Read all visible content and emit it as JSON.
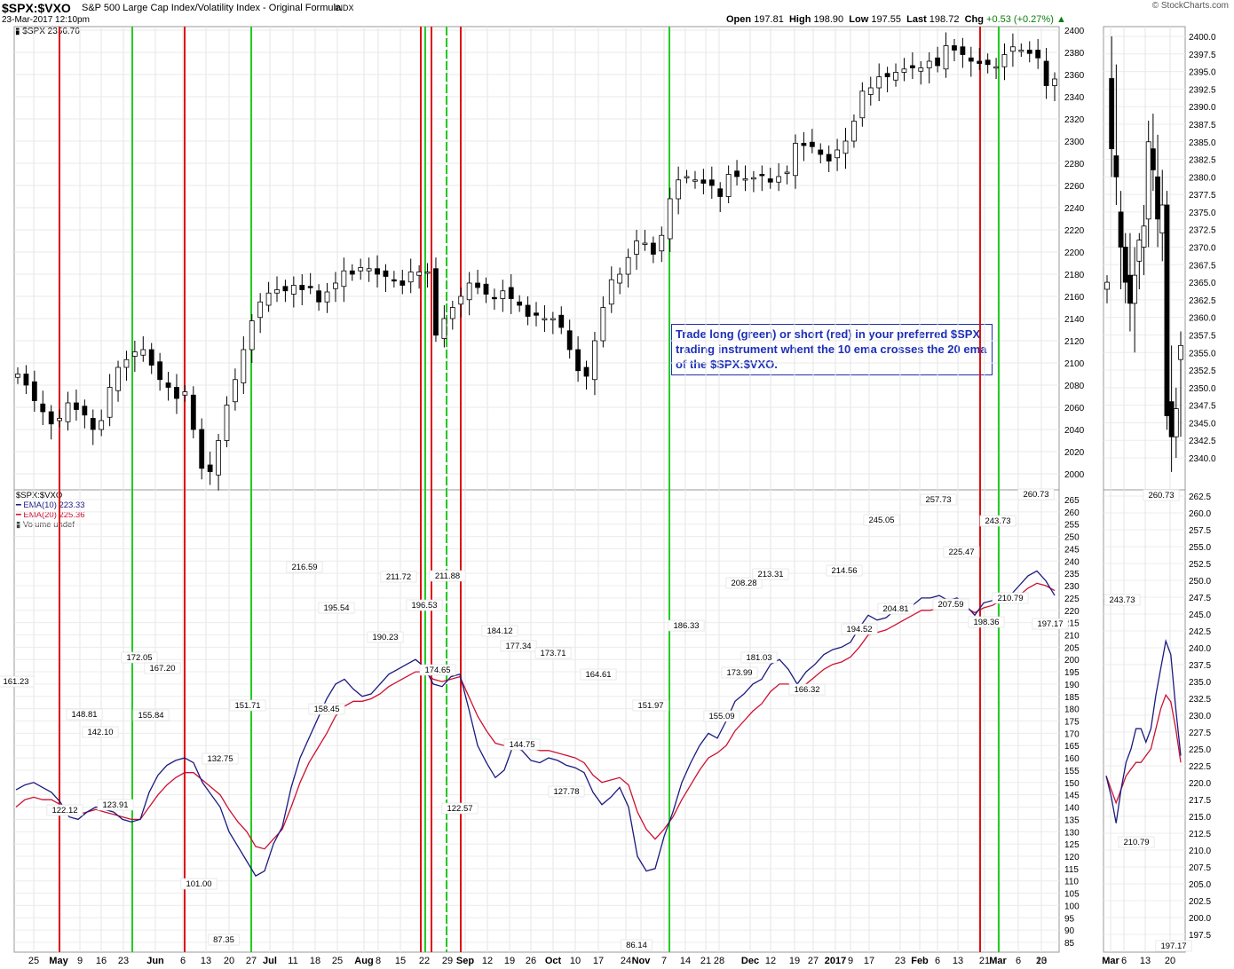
{
  "header": {
    "symbol": "$SPX:$VXO",
    "description": "S&P 500 Large Cap Index/Volatility Index - Original Formula",
    "exchange": "INDX",
    "datetime": "23-Mar-2017 12:10pm",
    "watermark": "© StockCharts.com",
    "open_label": "Open",
    "open": "197.81",
    "high_label": "High",
    "high": "198.90",
    "low_label": "Low",
    "low": "197.55",
    "last_label": "Last",
    "last": "198.72",
    "chg_label": "Chg",
    "chg": "+0.53 (+0.27%)",
    "price_overlay": "$SPX 2356.76"
  },
  "annotation": "Trade long (green) or short (red) in your preferred $SPX trading instrument whent the 10 ema crosses the 20 ema of the $SPX:$VXO.",
  "lower_legend": {
    "title": "$SPX:$VXO",
    "ema10": "EMA(10) 223.33",
    "ema20": "EMA(20) 225.36",
    "volume": "Volume undef"
  },
  "colors": {
    "green_line": "#22cc22",
    "red_line": "#dd1111",
    "ema10": "#1a1a80",
    "ema20": "#cc1133",
    "note_text": "#1d2fb8"
  },
  "chart_data": [
    {
      "type": "candlestick",
      "panel": "main-upper",
      "series_name": "$SPX",
      "ylim": [
        1990,
        2405
      ],
      "yticks": [
        2000,
        2020,
        2040,
        2060,
        2080,
        2100,
        2120,
        2140,
        2160,
        2180,
        2200,
        2220,
        2240,
        2260,
        2280,
        2300,
        2320,
        2340,
        2360,
        2380,
        2400
      ],
      "xticks": [
        "25",
        "May",
        "9",
        "16",
        "23",
        "Jun",
        "6",
        "13",
        "20",
        "27",
        "Jul",
        "11",
        "18",
        "25",
        "Aug",
        "8",
        "15",
        "22",
        "29",
        "Sep",
        "12",
        "19",
        "26",
        "Oct",
        "10",
        "17",
        "24",
        "Nov",
        "7",
        "14",
        "21",
        "28",
        "Dec",
        "12",
        "19",
        "27",
        "2017",
        "9",
        "17",
        "23",
        "Feb",
        "6",
        "13",
        "21",
        "Mar",
        "6",
        "13",
        "20"
      ],
      "path_x": [
        0,
        2,
        4,
        6,
        8,
        10,
        12,
        14,
        16,
        18,
        20,
        22,
        24,
        26,
        28,
        30,
        32,
        34,
        36,
        38,
        40,
        42,
        44,
        46,
        48,
        50,
        52,
        54,
        56,
        58,
        60,
        62,
        64,
        66,
        68,
        70,
        72,
        74,
        76,
        78,
        80,
        82,
        84,
        86,
        88,
        90,
        92,
        94,
        96,
        98,
        100,
        102,
        104,
        106,
        108,
        110,
        112,
        114,
        116,
        118,
        120,
        122,
        124,
        126,
        128,
        130,
        132,
        134,
        136,
        138,
        140,
        142,
        144,
        146,
        148,
        150,
        152,
        154,
        156,
        158,
        160,
        162,
        164,
        166,
        168,
        170,
        172,
        174,
        176,
        178,
        180,
        182,
        184,
        186,
        188,
        190,
        192,
        194,
        196,
        198,
        200,
        202,
        204,
        206,
        208,
        210,
        212,
        214,
        216,
        218,
        220,
        222,
        224,
        226,
        228,
        230,
        232,
        234,
        236,
        238,
        240,
        242,
        244,
        246,
        248
      ],
      "path_y": [
        2090,
        2080,
        2066,
        2056,
        2045,
        2050,
        2064,
        2058,
        2053,
        2040,
        2048,
        2078,
        2096,
        2103,
        2110,
        2112,
        2098,
        2085,
        2078,
        2068,
        2074,
        2040,
        2005,
        2002,
        2030,
        2062,
        2085,
        2112,
        2138,
        2155,
        2163,
        2166,
        2165,
        2170,
        2166,
        2168,
        2155,
        2164,
        2172,
        2183,
        2180,
        2186,
        2185,
        2180,
        2178,
        2174,
        2170,
        2182,
        2182,
        2182,
        2125,
        2140,
        2150,
        2160,
        2172,
        2168,
        2162,
        2158,
        2165,
        2158,
        2152,
        2142,
        2143,
        2140,
        2140,
        2132,
        2112,
        2093,
        2088,
        2120,
        2150,
        2175,
        2180,
        2195,
        2210,
        2208,
        2198,
        2215,
        2248,
        2265,
        2268,
        2265,
        2262,
        2260,
        2250,
        2270,
        2268,
        2266,
        2267,
        2269,
        2263,
        2268,
        2272,
        2298,
        2296,
        2295,
        2288,
        2282,
        2292,
        2300,
        2318,
        2345,
        2348,
        2358,
        2358,
        2362,
        2365,
        2366,
        2366,
        2372,
        2368,
        2386,
        2382,
        2378,
        2372,
        2370,
        2369,
        2367,
        2378,
        2385,
        2382,
        2379,
        2375,
        2350,
        2356
      ],
      "note": "Daily SPX closes approximate; last bar ~2356.76"
    },
    {
      "type": "candlestick",
      "panel": "zoom-upper",
      "series_name": "$SPX",
      "xticks": [
        "Mar",
        "6",
        "13",
        "20"
      ],
      "yticks": [
        2340.0,
        2342.5,
        2345.0,
        2347.5,
        2350.0,
        2352.5,
        2355.0,
        2357.5,
        2360.0,
        2362.5,
        2365.0,
        2367.5,
        2370.0,
        2372.5,
        2375.0,
        2377.5,
        2380.0,
        2382.5,
        2385.0,
        2387.5,
        2390.0,
        2392.5,
        2395.0,
        2397.5,
        2400.0
      ],
      "ylim": [
        2338,
        2401
      ],
      "x": [
        0,
        1,
        2,
        3,
        4,
        5,
        6,
        7,
        8,
        9,
        10,
        11,
        12,
        13,
        14,
        15,
        16
      ],
      "open": [
        2364,
        2394,
        2383,
        2375,
        2370,
        2366,
        2362,
        2368,
        2370,
        2374,
        2384,
        2380,
        2372,
        2376,
        2348,
        2343,
        2354
      ],
      "high": [
        2366,
        2400,
        2396,
        2378,
        2372,
        2372,
        2370,
        2372,
        2376,
        2388,
        2389,
        2386,
        2381,
        2378,
        2356,
        2350,
        2358
      ],
      "low": [
        2362,
        2380,
        2376,
        2364,
        2362,
        2358,
        2355,
        2364,
        2366,
        2370,
        2378,
        2370,
        2368,
        2344,
        2338,
        2340,
        2343
      ],
      "close": [
        2365,
        2384,
        2380,
        2370,
        2365,
        2362,
        2366,
        2371,
        2373,
        2385,
        2381,
        2374,
        2376,
        2346,
        2343,
        2347,
        2356
      ]
    },
    {
      "type": "line",
      "panel": "main-lower",
      "series": [
        {
          "name": "EMA(10)",
          "color": "#1a1a80"
        },
        {
          "name": "EMA(20)",
          "color": "#cc1133"
        }
      ],
      "ylim": [
        83,
        266
      ],
      "yticks": [
        85,
        90,
        95,
        100,
        105,
        110,
        115,
        120,
        125,
        130,
        135,
        140,
        145,
        150,
        155,
        160,
        165,
        170,
        175,
        180,
        185,
        190,
        195,
        200,
        205,
        210,
        215,
        220,
        225,
        230,
        235,
        240,
        245,
        250,
        255,
        260,
        265
      ],
      "ema10": [
        147,
        149,
        150,
        148,
        146,
        142,
        136,
        135,
        138,
        140,
        139,
        138,
        135,
        134,
        135,
        146,
        153,
        157,
        159,
        160,
        158,
        150,
        145,
        140,
        130,
        124,
        118,
        112,
        114,
        125,
        132,
        148,
        160,
        168,
        176,
        184,
        190,
        192,
        188,
        185,
        186,
        190,
        194,
        196,
        198,
        200,
        197,
        190,
        189,
        193,
        194,
        180,
        165,
        158,
        152,
        155,
        165,
        163,
        159,
        158,
        160,
        159,
        157,
        156,
        154,
        146,
        141,
        144,
        148,
        140,
        120,
        114,
        115,
        128,
        138,
        150,
        158,
        165,
        170,
        168,
        175,
        183,
        186,
        190,
        192,
        198,
        200,
        196,
        190,
        195,
        198,
        202,
        204,
        205,
        207,
        213,
        218,
        216,
        217,
        220,
        221,
        222,
        225,
        225,
        226,
        224,
        225,
        222,
        218,
        223,
        224,
        227,
        226,
        230,
        234,
        236,
        232,
        226
      ],
      "ema20": [
        140,
        143,
        144,
        143,
        143,
        141,
        138,
        137,
        138,
        139,
        138,
        137,
        136,
        135,
        135,
        140,
        145,
        149,
        152,
        154,
        154,
        151,
        148,
        145,
        139,
        134,
        130,
        124,
        123,
        127,
        131,
        140,
        150,
        158,
        164,
        170,
        177,
        181,
        183,
        183,
        184,
        186,
        189,
        191,
        193,
        195,
        195,
        192,
        191,
        192,
        193,
        185,
        177,
        171,
        166,
        165,
        167,
        166,
        164,
        163,
        163,
        162,
        161,
        160,
        158,
        153,
        150,
        151,
        152,
        149,
        138,
        131,
        127,
        131,
        136,
        143,
        149,
        155,
        160,
        162,
        165,
        171,
        175,
        179,
        182,
        187,
        190,
        190,
        188,
        190,
        193,
        196,
        198,
        199,
        201,
        205,
        210,
        211,
        212,
        214,
        216,
        218,
        220,
        220,
        221,
        221,
        222,
        221,
        219,
        221,
        222,
        224,
        224,
        226,
        229,
        231,
        230,
        228
      ],
      "value_labels": [
        "161.23",
        "148.81",
        "142.10",
        "122.12",
        "123.91",
        "172.05",
        "155.84",
        "167.20",
        "101.00",
        "132.75",
        "87.35",
        "151.71",
        "216.59",
        "158.45",
        "195.54",
        "190.23",
        "211.72",
        "196.53",
        "174.65",
        "211.88",
        "122.57",
        "184.12",
        "177.34",
        "144.75",
        "173.71",
        "127.78",
        "164.61",
        "86.14",
        "151.97",
        "186.33",
        "155.09",
        "173.99",
        "208.28",
        "181.03",
        "213.31",
        "166.32",
        "214.56",
        "194.52",
        "245.05",
        "204.81",
        "257.73",
        "225.47",
        "207.59",
        "198.36",
        "243.73",
        "210.79",
        "260.73",
        "197.17"
      ]
    },
    {
      "type": "line",
      "panel": "zoom-lower",
      "series": [
        {
          "name": "EMA(10)",
          "color": "#1a1a80"
        },
        {
          "name": "EMA(20)",
          "color": "#cc1133"
        }
      ],
      "ylim": [
        196,
        263.5
      ],
      "yticks": [
        197.5,
        200.0,
        202.5,
        205.0,
        207.5,
        210.0,
        212.5,
        215.0,
        217.5,
        220.0,
        222.5,
        225.0,
        227.5,
        230.0,
        232.5,
        235.0,
        237.5,
        240.0,
        242.5,
        245.0,
        247.5,
        250.0,
        252.5,
        255.0,
        257.5,
        260.0,
        262.5
      ],
      "ema10": [
        221,
        218,
        214,
        219,
        223,
        225,
        228,
        228,
        226,
        228,
        233,
        237,
        241,
        239,
        231,
        224
      ],
      "ema20": [
        221,
        219,
        217,
        219,
        221,
        222,
        223,
        223,
        224,
        225,
        228,
        231,
        233,
        232,
        228,
        223
      ],
      "value_labels": [
        "243.73",
        "210.79",
        "260.73",
        "197.17"
      ]
    }
  ],
  "signal_lines": [
    {
      "x_tick": "May",
      "color": "red"
    },
    {
      "x_tick": "23",
      "color": "green"
    },
    {
      "x_tick": "13",
      "color": "red"
    },
    {
      "x_tick": "Jul",
      "color": "green"
    },
    {
      "x_tick": "29",
      "color": "red"
    },
    {
      "x_tick": "29",
      "color": "green"
    },
    {
      "x_tick": "Sep",
      "color": "red"
    },
    {
      "x_tick": "Sep",
      "color": "green"
    },
    {
      "x_tick": "12",
      "color": "red"
    },
    {
      "x_tick": "14",
      "color": "green"
    },
    {
      "x_tick": "Mar",
      "color": "red"
    },
    {
      "x_tick": "6",
      "color": "green"
    }
  ]
}
